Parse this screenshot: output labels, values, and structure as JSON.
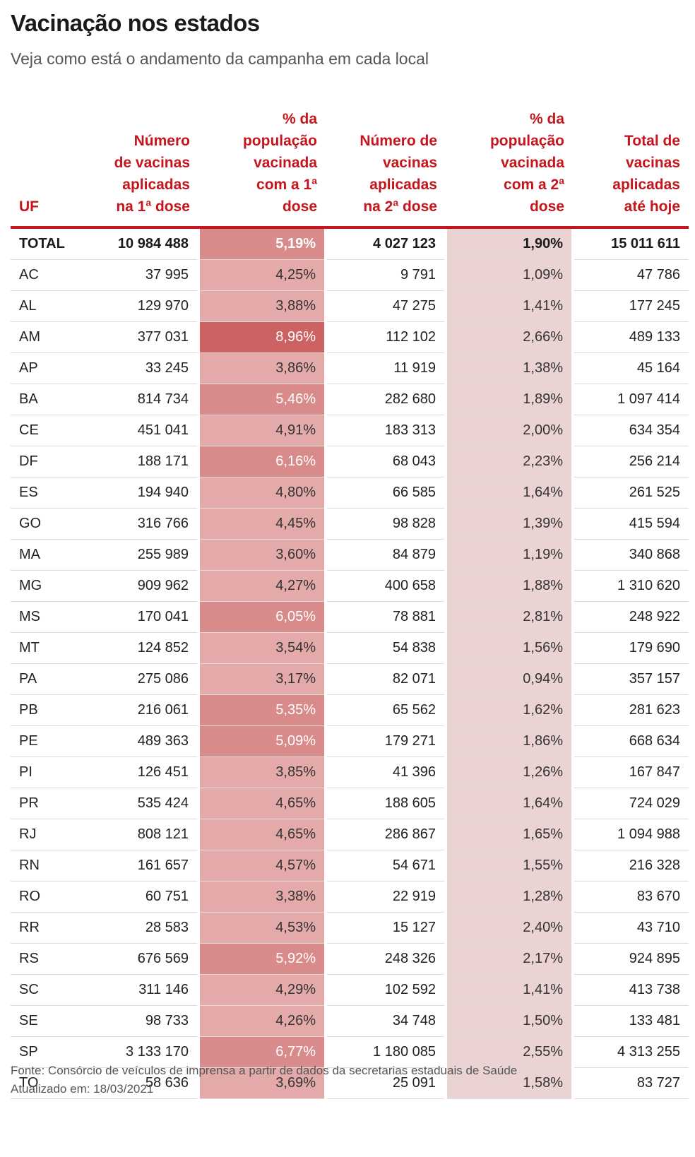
{
  "header": {
    "title": "Vacinação nos estados",
    "subtitle": "Veja como está o andamento da campanha em cada local"
  },
  "chart_data": {
    "type": "table",
    "columns": [
      "UF",
      "Número de vacinas aplicadas na 1ª dose",
      "% da população vacinada com a 1ª dose",
      "Número de vacinas aplicadas na 2ª dose",
      "% da população vacinada com a 2ª dose",
      "Total de vacinas aplicadas até hoje"
    ],
    "rows": [
      [
        "TOTAL",
        "10 984 488",
        "5,19%",
        "4 027 123",
        "1,90%",
        "15 011 611"
      ],
      [
        "AC",
        "37 995",
        "4,25%",
        "9 791",
        "1,09%",
        "47 786"
      ],
      [
        "AL",
        "129 970",
        "3,88%",
        "47 275",
        "1,41%",
        "177 245"
      ],
      [
        "AM",
        "377 031",
        "8,96%",
        "112 102",
        "2,66%",
        "489 133"
      ],
      [
        "AP",
        "33 245",
        "3,86%",
        "11 919",
        "1,38%",
        "45 164"
      ],
      [
        "BA",
        "814 734",
        "5,46%",
        "282 680",
        "1,89%",
        "1 097 414"
      ],
      [
        "CE",
        "451 041",
        "4,91%",
        "183 313",
        "2,00%",
        "634 354"
      ],
      [
        "DF",
        "188 171",
        "6,16%",
        "68 043",
        "2,23%",
        "256 214"
      ],
      [
        "ES",
        "194 940",
        "4,80%",
        "66 585",
        "1,64%",
        "261 525"
      ],
      [
        "GO",
        "316 766",
        "4,45%",
        "98 828",
        "1,39%",
        "415 594"
      ],
      [
        "MA",
        "255 989",
        "3,60%",
        "84 879",
        "1,19%",
        "340 868"
      ],
      [
        "MG",
        "909 962",
        "4,27%",
        "400 658",
        "1,88%",
        "1 310 620"
      ],
      [
        "MS",
        "170 041",
        "6,05%",
        "78 881",
        "2,81%",
        "248 922"
      ],
      [
        "MT",
        "124 852",
        "3,54%",
        "54 838",
        "1,56%",
        "179 690"
      ],
      [
        "PA",
        "275 086",
        "3,17%",
        "82 071",
        "0,94%",
        "357 157"
      ],
      [
        "PB",
        "216 061",
        "5,35%",
        "65 562",
        "1,62%",
        "281 623"
      ],
      [
        "PE",
        "489 363",
        "5,09%",
        "179 271",
        "1,86%",
        "668 634"
      ],
      [
        "PI",
        "126 451",
        "3,85%",
        "41 396",
        "1,26%",
        "167 847"
      ],
      [
        "PR",
        "535 424",
        "4,65%",
        "188 605",
        "1,64%",
        "724 029"
      ],
      [
        "RJ",
        "808 121",
        "4,65%",
        "286 867",
        "1,65%",
        "1 094 988"
      ],
      [
        "RN",
        "161 657",
        "4,57%",
        "54 671",
        "1,55%",
        "216 328"
      ],
      [
        "RO",
        "60 751",
        "3,38%",
        "22 919",
        "1,28%",
        "83 670"
      ],
      [
        "RR",
        "28 583",
        "4,53%",
        "15 127",
        "2,40%",
        "43 710"
      ],
      [
        "RS",
        "676 569",
        "5,92%",
        "248 326",
        "2,17%",
        "924 895"
      ],
      [
        "SC",
        "311 146",
        "4,29%",
        "102 592",
        "1,41%",
        "413 738"
      ],
      [
        "SE",
        "98 733",
        "4,26%",
        "34 748",
        "1,50%",
        "133 481"
      ],
      [
        "SP",
        "3 133 170",
        "6,77%",
        "1 180 085",
        "2,55%",
        "4 313 255"
      ],
      [
        "TO",
        "58 636",
        "3,69%",
        "25 091",
        "1,58%",
        "83 727"
      ]
    ],
    "heat_colors": {
      "accent": "#c4161c",
      "pct1_low": "#e4aaaa",
      "pct1_mid": "#d98a8a",
      "pct1_high": "#cd6262",
      "pct2": "#ebd3d3"
    }
  },
  "footer": {
    "source": "Fonte: Consórcio de veículos de imprensa a partir de dados da secretarias estaduais de Saúde",
    "updated": "Atualizado em: 18/03/2021"
  }
}
